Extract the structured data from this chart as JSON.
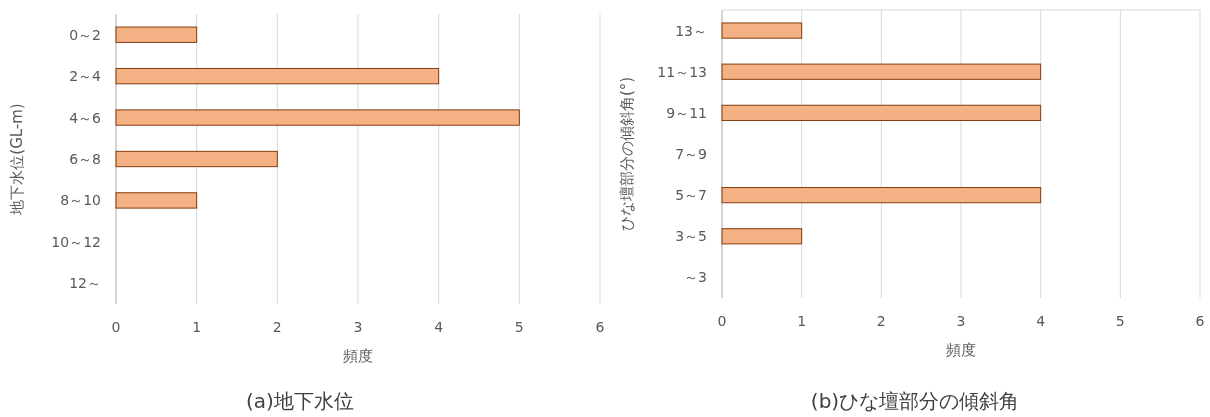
{
  "chart_data": [
    {
      "type": "bar",
      "orientation": "horizontal",
      "title": "(a)地下水位",
      "xlabel": "頻度",
      "ylabel": "地下水位(GL-m)",
      "categories": [
        "0～2",
        "2～4",
        "4～6",
        "6～8",
        "8～10",
        "10～12",
        "12～"
      ],
      "values": [
        1,
        4,
        5,
        2,
        1,
        0,
        0
      ],
      "color": "#f4b183",
      "xlim": [
        0,
        6
      ],
      "xticks": [
        0,
        1,
        2,
        3,
        4,
        5,
        6
      ],
      "grid": "x"
    },
    {
      "type": "bar",
      "orientation": "horizontal",
      "title": "(b)ひな壇部分の傾斜角",
      "xlabel": "頻度",
      "ylabel": "ひな壇部分の傾斜角(°)",
      "categories": [
        "13～",
        "11～13",
        "9～11",
        "7～9",
        "5～7",
        "3～5",
        "～3"
      ],
      "values": [
        1,
        4,
        4,
        0,
        4,
        1,
        0
      ],
      "color": "#f4b183",
      "xlim": [
        0,
        6
      ],
      "xticks": [
        0,
        1,
        2,
        3,
        4,
        5,
        6
      ],
      "grid": "x"
    }
  ]
}
